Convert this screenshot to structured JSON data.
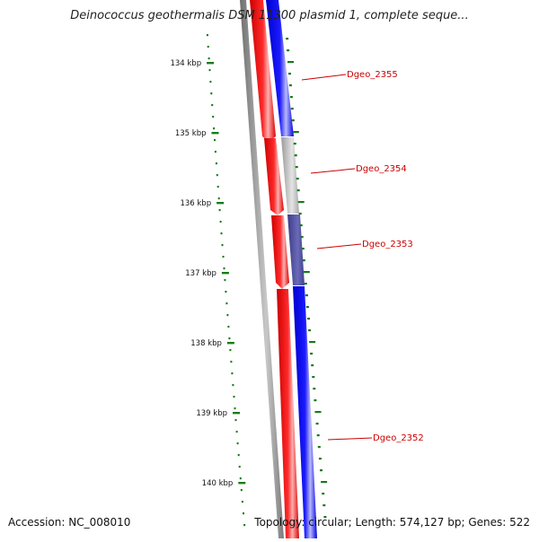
{
  "title": "Deinococcus geothermalis DSM 11300 plasmid 1, complete seque...",
  "accession": "Accession: NC_008010",
  "topology": "Topology: circular; Length: 574,127 bp; Genes: 522",
  "ruler": {
    "unit": "kbp",
    "ticks": [
      "134 kbp",
      "135 kbp",
      "136 kbp",
      "137 kbp",
      "138 kbp",
      "139 kbp",
      "140 kbp"
    ]
  },
  "colors": {
    "forward_gene": "#ff0000",
    "reverse_gene": "#0000ff",
    "gene_grey": "#b0b0b0",
    "gene_purple": "#4b4b9a",
    "backbone": "#808080",
    "ruler": "#1a7a1a",
    "label": "#cc0000"
  },
  "genes": [
    {
      "label": "Dgeo_2355",
      "strand": "reverse",
      "color": "#0000ff"
    },
    {
      "label": "Dgeo_2354",
      "strand": "reverse",
      "color": "#b0b0b0"
    },
    {
      "label": "Dgeo_2353",
      "strand": "reverse",
      "color": "#4b4b9a"
    },
    {
      "label": "Dgeo_2352",
      "strand": "reverse",
      "color": "#0000ff"
    }
  ]
}
